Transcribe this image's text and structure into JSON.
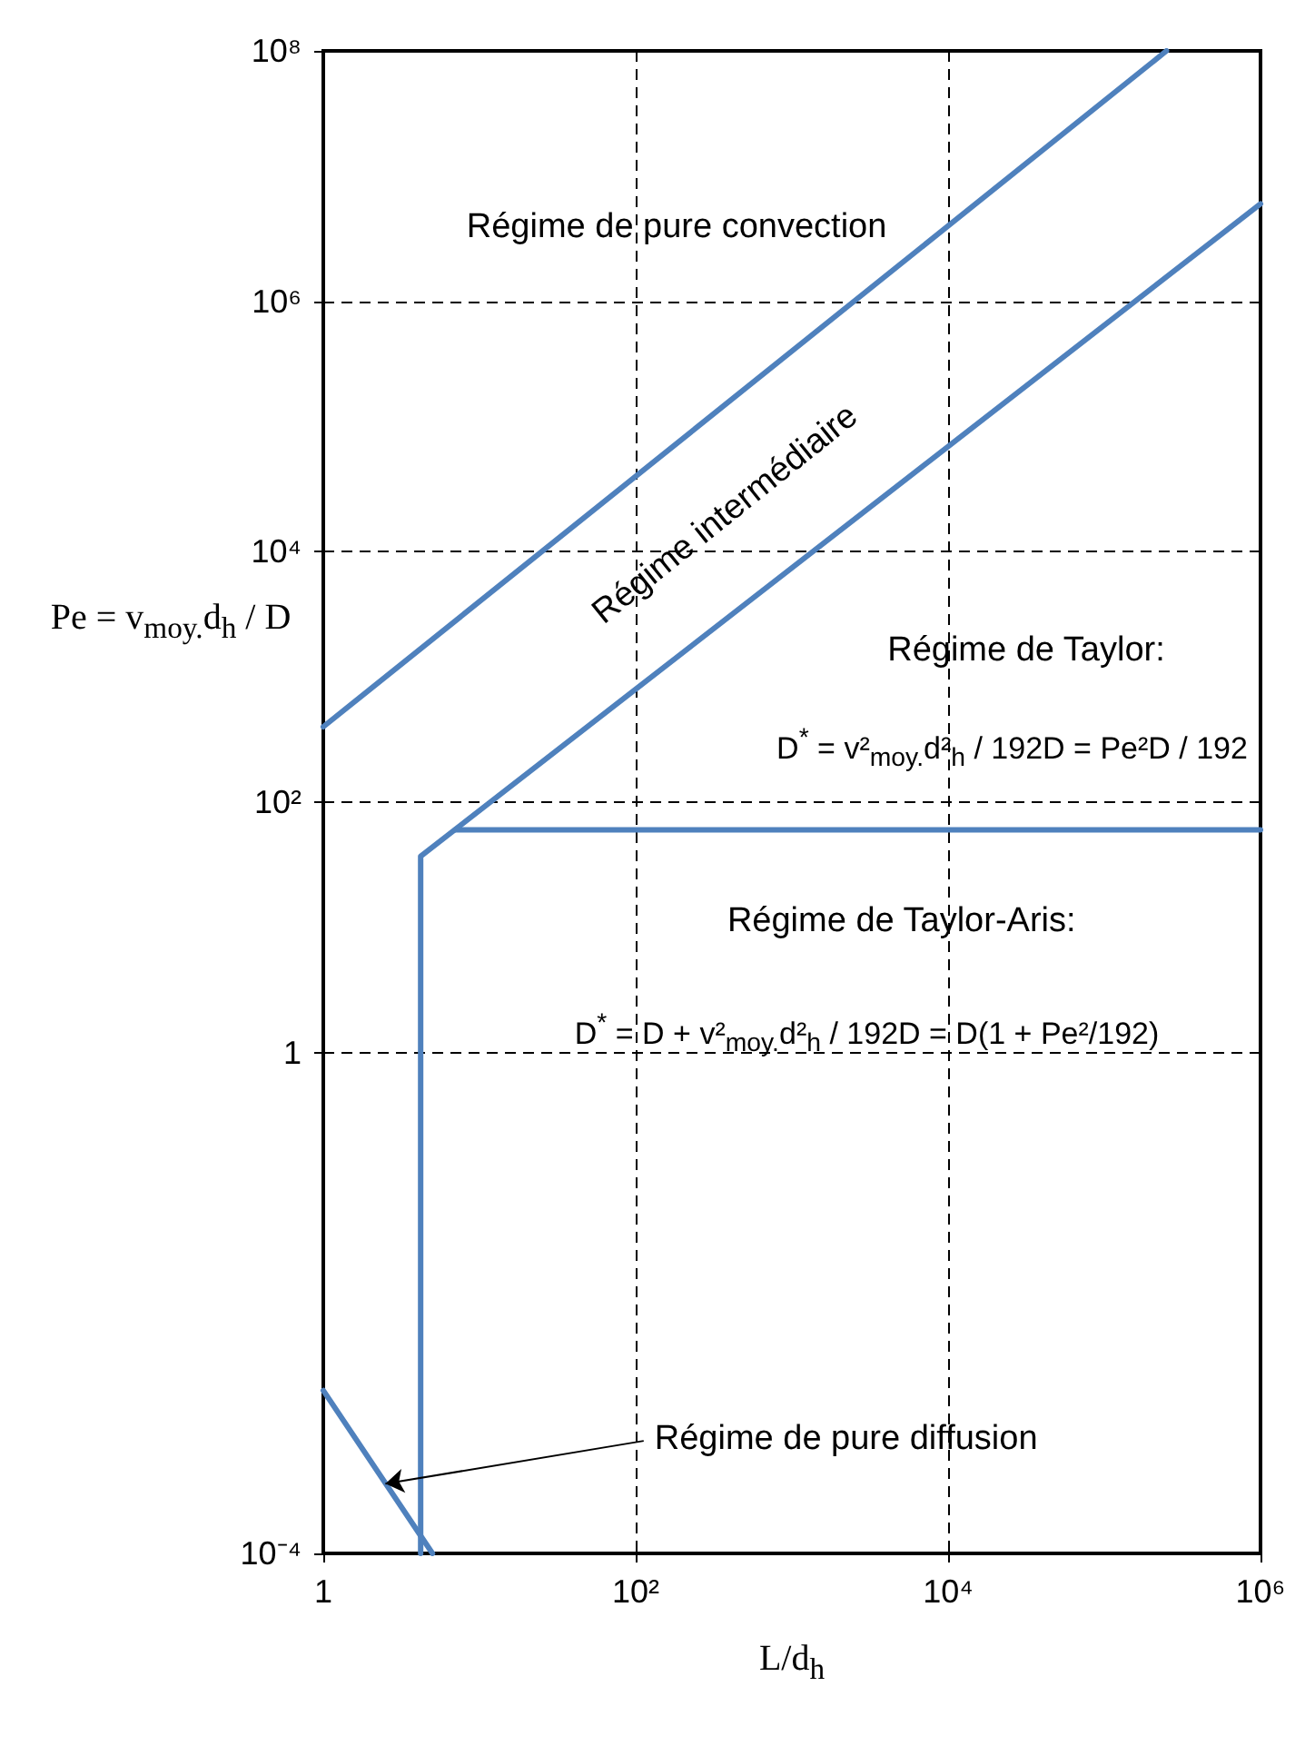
{
  "chart_data": {
    "type": "line",
    "xlabel": "L/d$_{h}$",
    "ylabel": "Pe = v$_{moy.}$d$_{h}$ / D",
    "log": "xy",
    "grid": true,
    "marker": "none",
    "line_style": "solid",
    "xlim": [
      1,
      1000000
    ],
    "ylim": [
      0.0001,
      100000000
    ],
    "xticks": [
      1,
      {
        "value": 100,
        "label": "10²"
      },
      {
        "value": 10000,
        "label": "10⁴"
      },
      {
        "value": 1000000,
        "label": "10⁶"
      }
    ],
    "yticks": [
      {
        "value": 0.0001,
        "label": "10⁻⁴"
      },
      1,
      {
        "value": 100,
        "label": "10²"
      },
      {
        "value": 10000,
        "label": "10⁴"
      },
      {
        "value": 1000000,
        "label": "10⁶"
      },
      {
        "value": 100000000,
        "label": "10⁸"
      }
    ],
    "series": [
      {
        "color": "#4f81bd",
        "x": [
          1,
          250000
        ],
        "values": [
          400,
          100000000
        ]
      },
      {
        "color": "#4f81bd",
        "x": [
          4.2,
          4.2,
          1000000
        ],
        "values": [
          0.0001,
          37,
          6000000
        ]
      },
      {
        "color": "#4f81bd",
        "x": [
          7,
          1000000
        ],
        "values": [
          60,
          60
        ]
      },
      {
        "color": "#4f81bd",
        "x": [
          1,
          5
        ],
        "values": [
          0.002,
          0.0001
        ]
      }
    ],
    "annotations": [
      "Régime de pure convection",
      "Régime intermédiaire",
      "Régime de Taylor:",
      "D$^{*}$ = v²$_{moy.}$d²$_{h}$ / 192D = Pe²D / 192",
      "Régime de Taylor-Aris:",
      "D$^{*}$ = D + v²$_{moy.}$d²$_{h}$ / 192D = D(1 + Pe²/192)",
      {
        "text": "Régime de pure diffusion",
        "x": 2.5,
        "y": 0.00036
      }
    ]
  }
}
